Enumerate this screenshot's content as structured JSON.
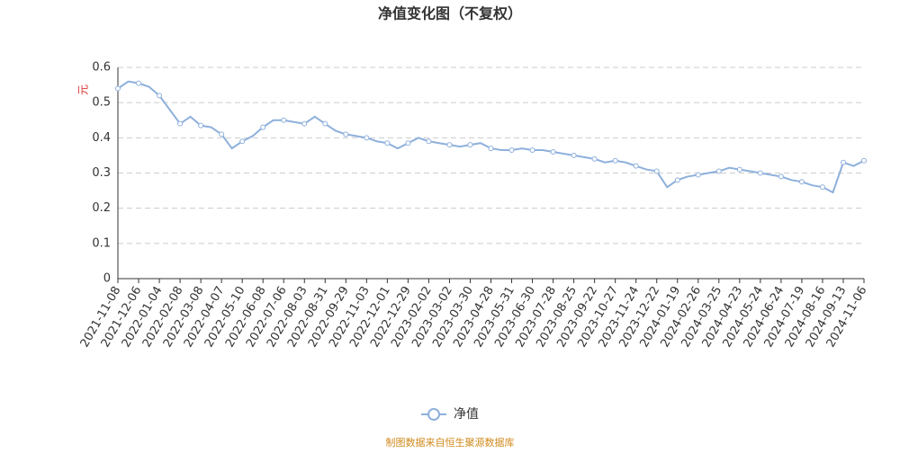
{
  "chart_data": {
    "type": "line",
    "title": "净值变化图（不复权）",
    "y_label": "元",
    "source": "制图数据来自恒生聚源数据库",
    "categories": [
      "2021-11-08",
      null,
      "2021-12-06",
      null,
      "2022-01-04",
      null,
      "2022-02-08",
      null,
      "2022-03-08",
      null,
      "2022-04-07",
      null,
      "2022-05-10",
      null,
      "2022-06-08",
      null,
      "2022-07-06",
      null,
      "2022-08-03",
      null,
      "2022-08-31",
      null,
      "2022-09-29",
      null,
      "2022-11-03",
      null,
      "2022-12-01",
      null,
      "2022-12-29",
      null,
      "2023-02-02",
      null,
      "2023-03-02",
      null,
      "2023-03-30",
      null,
      "2023-04-28",
      null,
      "2023-05-31",
      null,
      "2023-06-30",
      null,
      "2023-07-28",
      null,
      "2023-08-25",
      null,
      "2023-09-22",
      null,
      "2023-10-27",
      null,
      "2023-11-24",
      null,
      "2023-12-22",
      null,
      "2024-01-19",
      null,
      "2024-02-26",
      null,
      "2024-03-25",
      null,
      "2024-04-23",
      null,
      "2024-05-24",
      null,
      "2024-06-24",
      null,
      "2024-07-19",
      null,
      "2024-08-16",
      null,
      "2024-09-13",
      null,
      "2024-11-06"
    ],
    "series": [
      {
        "name": "净值",
        "color": "#8eb0dc",
        "values": [
          0.54,
          0.56,
          0.555,
          0.545,
          0.52,
          0.48,
          0.44,
          0.46,
          0.435,
          0.43,
          0.41,
          0.37,
          0.39,
          0.405,
          0.43,
          0.45,
          0.45,
          0.445,
          0.44,
          0.46,
          0.44,
          0.42,
          0.41,
          0.405,
          0.4,
          0.39,
          0.385,
          0.37,
          0.385,
          0.4,
          0.39,
          0.385,
          0.38,
          0.375,
          0.38,
          0.385,
          0.37,
          0.365,
          0.365,
          0.37,
          0.365,
          0.365,
          0.36,
          0.355,
          0.35,
          0.345,
          0.34,
          0.33,
          0.335,
          0.33,
          0.32,
          0.31,
          0.305,
          0.26,
          0.28,
          0.29,
          0.295,
          0.3,
          0.305,
          0.315,
          0.31,
          0.305,
          0.3,
          0.295,
          0.29,
          0.28,
          0.275,
          0.265,
          0.26,
          0.245,
          0.33,
          0.32,
          0.335
        ]
      }
    ],
    "ylim": [
      0,
      0.6
    ],
    "yticks": [
      0,
      0.1,
      0.2,
      0.3,
      0.4,
      0.5,
      0.6
    ],
    "grid": true
  }
}
